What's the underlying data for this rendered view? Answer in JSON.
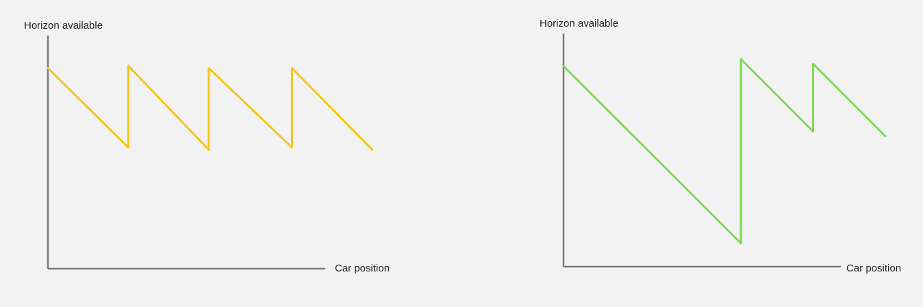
{
  "colors": {
    "background": "#f2f2f2",
    "axis": "#7a7a7a",
    "text": "#1f1f1f"
  },
  "chart_data": [
    {
      "type": "line",
      "title": "",
      "xlabel": "Car position",
      "ylabel": "Horizon available",
      "xlim": [
        0,
        100
      ],
      "ylim": [
        0,
        100
      ],
      "grid": false,
      "series": [
        {
          "color": "#f5c518",
          "x": [
            0,
            29,
            29,
            58,
            58,
            88,
            88,
            117
          ],
          "y": [
            86,
            52,
            87,
            51,
            86,
            52,
            86,
            51
          ]
        }
      ]
    },
    {
      "type": "line",
      "title": "",
      "xlabel": "Car position",
      "ylabel": "Horizon available",
      "xlim": [
        0,
        100
      ],
      "ylim": [
        0,
        100
      ],
      "grid": false,
      "series": [
        {
          "color": "#7ed957",
          "x": [
            0,
            64,
            64,
            90,
            90,
            116
          ],
          "y": [
            86,
            10,
            89,
            58,
            87,
            56
          ]
        }
      ]
    }
  ]
}
